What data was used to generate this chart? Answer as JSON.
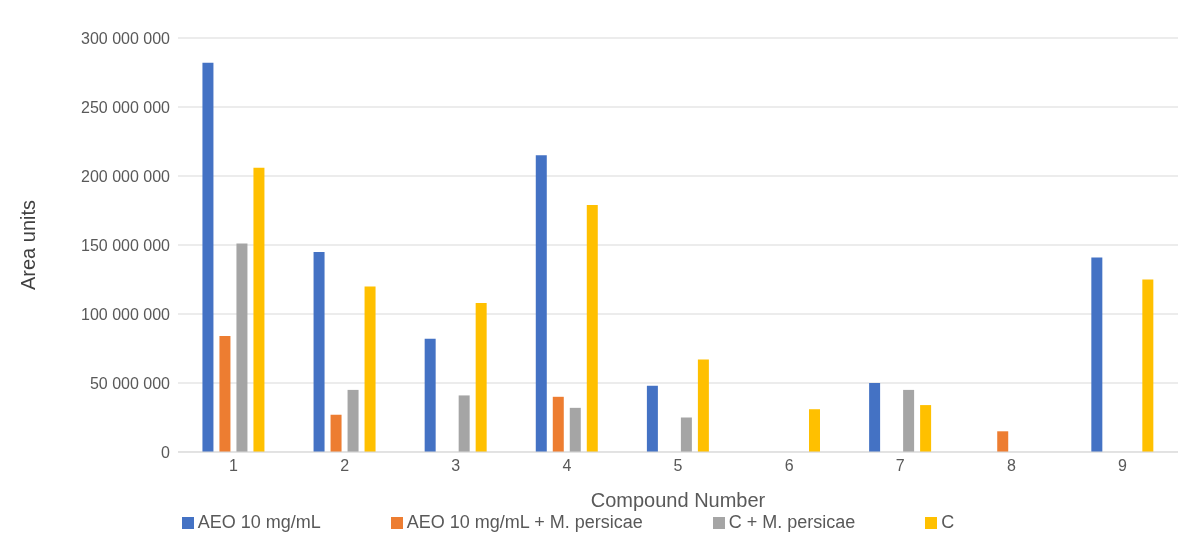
{
  "chart_data": {
    "type": "bar",
    "xlabel": "Compound Number",
    "ylabel": "Area units",
    "categories": [
      "1",
      "2",
      "3",
      "4",
      "5",
      "6",
      "7",
      "8",
      "9"
    ],
    "series": [
      {
        "name": "AEO 10 mg/mL",
        "color": "#4472c4",
        "values": [
          282000000,
          145000000,
          82000000,
          215000000,
          48000000,
          null,
          50000000,
          null,
          141000000
        ]
      },
      {
        "name": "AEO 10 mg/mL + M. persicae",
        "color": "#ed7d31",
        "values": [
          84000000,
          27000000,
          null,
          40000000,
          null,
          null,
          null,
          15000000,
          null
        ]
      },
      {
        "name": "C + M. persicae",
        "color": "#a5a5a5",
        "values": [
          151000000,
          45000000,
          41000000,
          32000000,
          25000000,
          null,
          45000000,
          null,
          null
        ]
      },
      {
        "name": "C",
        "color": "#ffc000",
        "values": [
          206000000,
          120000000,
          108000000,
          179000000,
          67000000,
          31000000,
          34000000,
          null,
          125000000
        ]
      }
    ],
    "ylim": [
      0,
      300000000
    ],
    "yticks": [
      0,
      {
        "value": 50000000,
        "label": "50 000 000"
      },
      {
        "value": 100000000,
        "label": "100 000 000"
      },
      {
        "value": 150000000,
        "label": "150 000 000"
      },
      {
        "value": 200000000,
        "label": "200 000 000"
      },
      {
        "value": 250000000,
        "label": "250 000 000"
      },
      {
        "value": 300000000,
        "label": "300 000 000"
      }
    ],
    "grid": "y",
    "legend": "bottom"
  }
}
